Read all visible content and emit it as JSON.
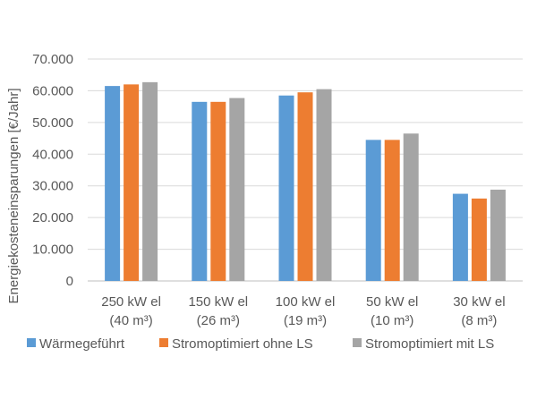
{
  "chart_data": {
    "type": "bar",
    "title": "",
    "xlabel": "",
    "ylabel": "Energiekosteneinsparungen [€/Jahr]",
    "ylim": [
      0,
      70000
    ],
    "yticks": [
      "0",
      "10.000",
      "20.000",
      "30.000",
      "40.000",
      "50.000",
      "60.000",
      "70.000"
    ],
    "ytick_values": [
      0,
      10000,
      20000,
      30000,
      40000,
      50000,
      60000,
      70000
    ],
    "grid": true,
    "legend_position": "bottom",
    "categories": [
      [
        "250 kW el",
        "(40 m³)"
      ],
      [
        "150 kW el",
        "(26 m³)"
      ],
      [
        "100 kW el",
        "(19 m³)"
      ],
      [
        "50 kW el",
        "(10 m³)"
      ],
      [
        "30 kW el",
        "(8 m³)"
      ]
    ],
    "series": [
      {
        "name": "Wärmegeführt",
        "color": "#5B9BD5",
        "values": [
          61500,
          56500,
          58500,
          44500,
          27500
        ]
      },
      {
        "name": "Stromoptimiert ohne LS",
        "color": "#ED7D31",
        "values": [
          62000,
          56500,
          59500,
          44500,
          26000
        ]
      },
      {
        "name": "Stromoptimiert mit LS",
        "color": "#A5A5A5",
        "values": [
          62700,
          57700,
          60500,
          46500,
          28800
        ]
      }
    ]
  }
}
